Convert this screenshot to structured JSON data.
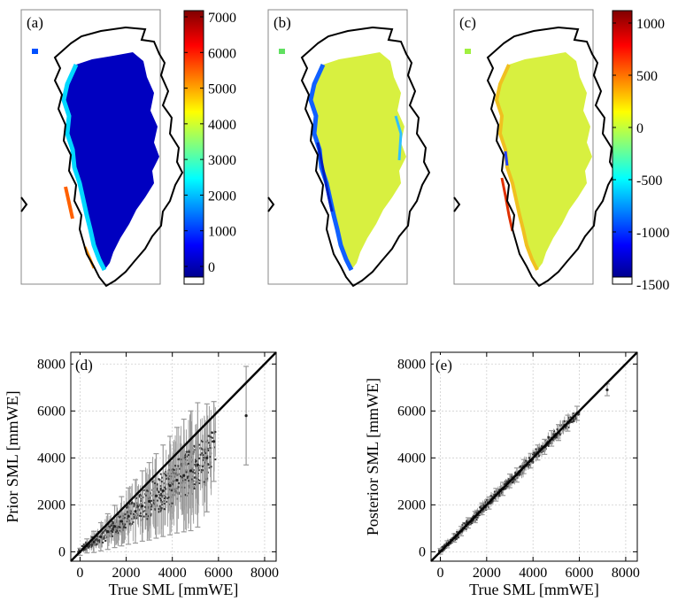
{
  "figure": {
    "panel_labels": [
      "(a)",
      "(b)",
      "(c)",
      "(d)",
      "(e)"
    ]
  },
  "colorbars": [
    {
      "panel": "(a)",
      "ticks": [
        "7000",
        "6000",
        "5000",
        "4000",
        "3000",
        "2000",
        "1000",
        "0"
      ]
    },
    {
      "panel": "(c)",
      "ticks": [
        "1000",
        "500",
        "0",
        "-500",
        "-1000",
        "-1500"
      ]
    }
  ],
  "colors": {
    "jet_dark_blue": "#00008f",
    "jet_blue": "#0000ff",
    "jet_cyan": "#00ffff",
    "jet_yellow": "#ffff00",
    "jet_green_yellow": "#d8f040",
    "jet_red": "#ff0000",
    "jet_dark_red": "#800000",
    "scatter_grey": "#9a9a9a",
    "scatter_dark": "#333333"
  },
  "chart_data": [
    {
      "type": "scatter",
      "panel": "(d)",
      "title": "",
      "xlabel": "True SML [mmWE]",
      "ylabel": "Prior SML [mmWE]",
      "xlim": [
        -400,
        8500
      ],
      "ylim": [
        -400,
        8500
      ],
      "xticks": [
        "0",
        "2000",
        "4000",
        "6000",
        "8000"
      ],
      "yticks": [
        "0",
        "2000",
        "4000",
        "6000",
        "8000"
      ],
      "grid": true,
      "reference_line": "y = x",
      "series": [
        {
          "x": 0,
          "y": 0,
          "err": 150
        },
        {
          "x": 300,
          "y": 250,
          "err": 300
        },
        {
          "x": 600,
          "y": 420,
          "err": 450
        },
        {
          "x": 900,
          "y": 640,
          "err": 600
        },
        {
          "x": 1200,
          "y": 860,
          "err": 760
        },
        {
          "x": 1500,
          "y": 1080,
          "err": 900
        },
        {
          "x": 1800,
          "y": 1300,
          "err": 1050
        },
        {
          "x": 2100,
          "y": 1520,
          "err": 1200
        },
        {
          "x": 2400,
          "y": 1720,
          "err": 1350
        },
        {
          "x": 2700,
          "y": 1950,
          "err": 1500
        },
        {
          "x": 3000,
          "y": 2150,
          "err": 1650
        },
        {
          "x": 3300,
          "y": 2380,
          "err": 1800
        },
        {
          "x": 3600,
          "y": 2600,
          "err": 1950
        },
        {
          "x": 3900,
          "y": 2820,
          "err": 2100
        },
        {
          "x": 4200,
          "y": 3050,
          "err": 2250
        },
        {
          "x": 4500,
          "y": 3250,
          "err": 2400
        },
        {
          "x": 4800,
          "y": 3450,
          "err": 2550
        },
        {
          "x": 5100,
          "y": 3700,
          "err": 2650
        },
        {
          "x": 5500,
          "y": 4000,
          "err": 2300
        },
        {
          "x": 5800,
          "y": 4700,
          "err": 1700
        },
        {
          "x": 7200,
          "y": 5800,
          "err": 2100
        }
      ]
    },
    {
      "type": "scatter",
      "panel": "(e)",
      "title": "",
      "xlabel": "True SML [mmWE]",
      "ylabel": "Posterior SML [mmWE]",
      "xlim": [
        -400,
        8500
      ],
      "ylim": [
        -400,
        8500
      ],
      "xticks": [
        "0",
        "2000",
        "4000",
        "6000",
        "8000"
      ],
      "yticks": [
        "0",
        "2000",
        "4000",
        "6000",
        "8000"
      ],
      "grid": true,
      "reference_line": "y = x",
      "series": [
        {
          "x": 0,
          "y": 20,
          "err": 120
        },
        {
          "x": 300,
          "y": 320,
          "err": 150
        },
        {
          "x": 600,
          "y": 590,
          "err": 180
        },
        {
          "x": 900,
          "y": 880,
          "err": 200
        },
        {
          "x": 1200,
          "y": 1230,
          "err": 220
        },
        {
          "x": 1500,
          "y": 1480,
          "err": 240
        },
        {
          "x": 1800,
          "y": 1830,
          "err": 250
        },
        {
          "x": 2100,
          "y": 2080,
          "err": 260
        },
        {
          "x": 2400,
          "y": 2430,
          "err": 270
        },
        {
          "x": 2700,
          "y": 2680,
          "err": 280
        },
        {
          "x": 3000,
          "y": 3020,
          "err": 290
        },
        {
          "x": 3300,
          "y": 3270,
          "err": 300
        },
        {
          "x": 3600,
          "y": 3630,
          "err": 300
        },
        {
          "x": 3900,
          "y": 3880,
          "err": 310
        },
        {
          "x": 4200,
          "y": 4230,
          "err": 320
        },
        {
          "x": 4500,
          "y": 4470,
          "err": 320
        },
        {
          "x": 4800,
          "y": 4830,
          "err": 330
        },
        {
          "x": 5100,
          "y": 5080,
          "err": 340
        },
        {
          "x": 5500,
          "y": 5480,
          "err": 340
        },
        {
          "x": 5900,
          "y": 5900,
          "err": 300
        },
        {
          "x": 7200,
          "y": 6900,
          "err": 250
        }
      ]
    }
  ]
}
